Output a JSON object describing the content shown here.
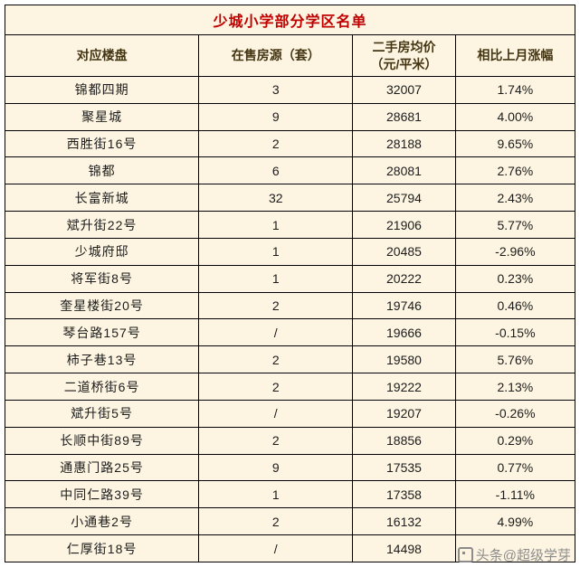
{
  "title": "少城小学部分学区名单",
  "watermark": {
    "text": "头条@超级学芽"
  },
  "colors": {
    "background": "#fdf5e1",
    "border": "#000000",
    "title_text": "#c00000",
    "header_text": "#443512",
    "cell_text": "#1c1c1c",
    "watermark_text": "#8c8c8c"
  },
  "chart_data": {
    "type": "table",
    "title": "少城小学部分学区名单",
    "columns": [
      "对应楼盘",
      "在售房源（套）",
      "二手房均价\n（元/平米）",
      "相比上月涨幅"
    ],
    "column_keys": [
      "property",
      "units_for_sale",
      "avg_price_yuan_per_sqm",
      "month_over_month_change"
    ],
    "rows": [
      [
        "锦都四期",
        "3",
        "32007",
        "1.74%"
      ],
      [
        "聚星城",
        "9",
        "28681",
        "4.00%"
      ],
      [
        "西胜街16号",
        "2",
        "28188",
        "9.65%"
      ],
      [
        "锦都",
        "6",
        "28081",
        "2.76%"
      ],
      [
        "长富新城",
        "32",
        "25794",
        "2.43%"
      ],
      [
        "斌升街22号",
        "1",
        "21906",
        "5.77%"
      ],
      [
        "少城府邸",
        "1",
        "20485",
        "-2.96%"
      ],
      [
        "将军街8号",
        "1",
        "20222",
        "0.23%"
      ],
      [
        "奎星楼街20号",
        "2",
        "19746",
        "0.46%"
      ],
      [
        "琴台路157号",
        "/",
        "19666",
        "-0.15%"
      ],
      [
        "柿子巷13号",
        "2",
        "19580",
        "5.76%"
      ],
      [
        "二道桥街6号",
        "2",
        "19222",
        "2.13%"
      ],
      [
        "斌升街5号",
        "/",
        "19207",
        "-0.26%"
      ],
      [
        "长顺中街89号",
        "2",
        "18856",
        "0.29%"
      ],
      [
        "通惠门路25号",
        "9",
        "17535",
        "0.77%"
      ],
      [
        "中同仁路39号",
        "1",
        "17358",
        "-1.11%"
      ],
      [
        "小通巷2号",
        "2",
        "16132",
        "4.99%"
      ],
      [
        "仁厚街18号",
        "/",
        "14498",
        ""
      ]
    ]
  }
}
